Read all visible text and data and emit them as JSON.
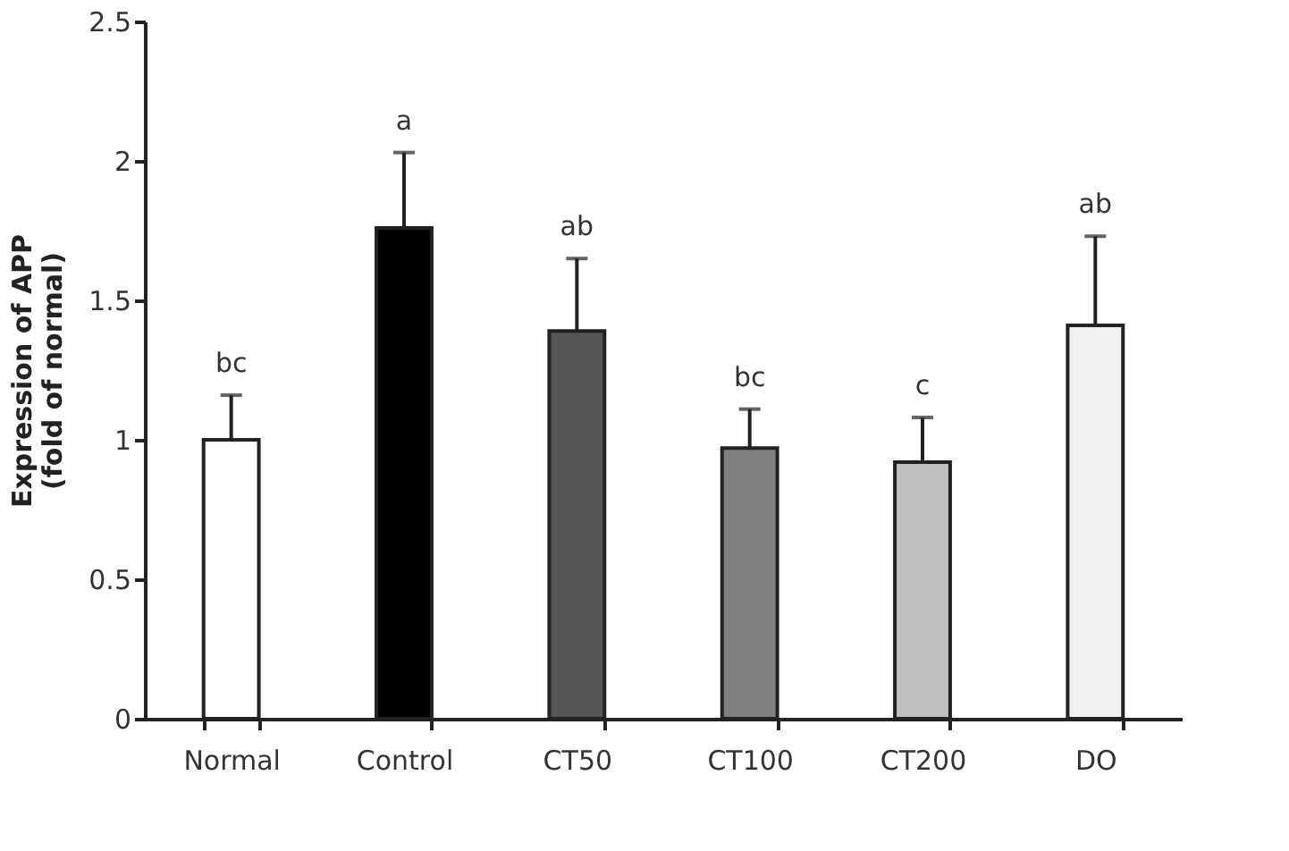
{
  "chart_data": {
    "type": "bar",
    "categories": [
      "Normal",
      "Control",
      "CT50",
      "CT100",
      "CT200",
      "DO"
    ],
    "values": [
      1.0,
      1.76,
      1.39,
      0.97,
      0.92,
      1.41
    ],
    "errors": [
      0.16,
      0.27,
      0.26,
      0.14,
      0.16,
      0.32
    ],
    "colors": [
      "#ffffff",
      "#000000",
      "#555555",
      "#7f7f7f",
      "#bfbfbf",
      "#f0f0f0"
    ],
    "ylabel": "Expression of APP\n(fold of normal)",
    "ylim": [
      0,
      2.5
    ],
    "yticks": [
      0,
      0.5,
      1,
      1.5,
      2,
      2.5
    ],
    "grid": false,
    "annotations": [
      {
        "text": "bc",
        "x": "Normal",
        "y": 1.16
      },
      {
        "text": "a",
        "x": "Control",
        "y": 2.03
      },
      {
        "text": "ab",
        "x": "CT50",
        "y": 1.65
      },
      {
        "text": "bc",
        "x": "CT100",
        "y": 1.11
      },
      {
        "text": "c",
        "x": "CT200",
        "y": 1.08
      },
      {
        "text": "ab",
        "x": "DO",
        "y": 1.73
      }
    ]
  }
}
